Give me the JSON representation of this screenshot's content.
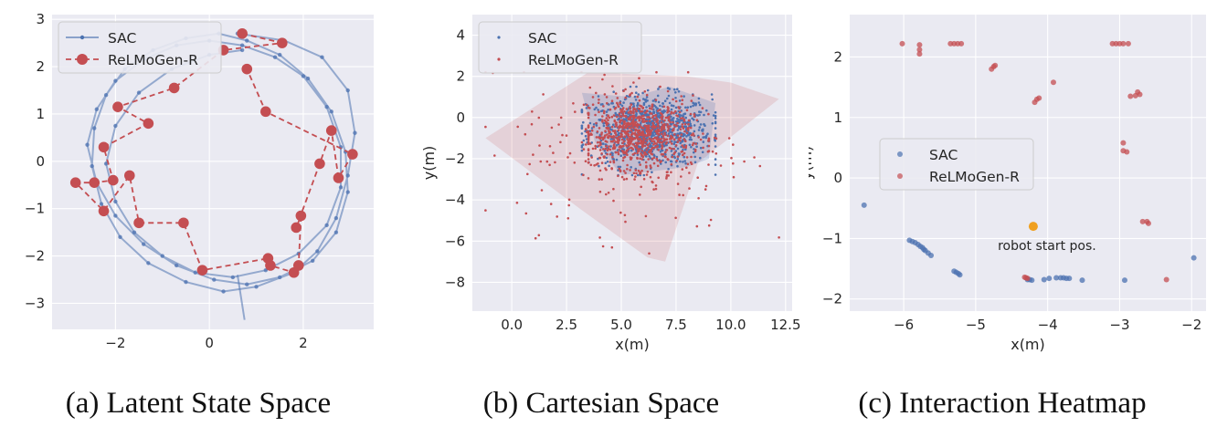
{
  "colors": {
    "sac": "#4c72b0",
    "relmogen": "#c44e52",
    "start": "#f0a020",
    "bg": "#eaeaf2"
  },
  "captions": [
    "(a) Latent State Space",
    "(b) Cartesian Space",
    "(c) Interaction Heatmap"
  ],
  "chart_data": [
    {
      "type": "line",
      "title": "",
      "xlabel": "",
      "ylabel": "",
      "xlim": [
        -3.35,
        3.5
      ],
      "ylim": [
        -3.55,
        3.1
      ],
      "xticks": [
        -2,
        0,
        2
      ],
      "yticks": [
        -3,
        -2,
        -1,
        0,
        1,
        2,
        3
      ],
      "tick_labels_x": [
        "−2",
        "0",
        "2"
      ],
      "tick_labels_y": [
        "−3",
        "−2",
        "−1",
        "0",
        "1",
        "2",
        "3"
      ],
      "legend": {
        "position": "top-left",
        "entries": [
          "SAC",
          "ReLMoGen-R"
        ]
      },
      "series": [
        {
          "name": "SAC",
          "style": "solid line with small markers",
          "x": [
            0.6,
            1.6,
            2.4,
            2.95,
            3.1,
            2.95,
            2.7,
            2.3,
            1.8,
            1.0,
            0.3,
            -0.5,
            -1.3,
            -1.9,
            -2.3,
            -2.5,
            -2.45,
            -2.2,
            -1.8,
            -1.2,
            -0.5,
            0.2,
            0.8,
            1.5,
            2.1,
            2.6,
            2.9,
            2.95,
            2.7,
            2.2,
            1.5,
            0.8,
            0.1,
            -0.7,
            -1.4,
            -2.0,
            -2.4,
            -2.6,
            -2.4,
            -2.0,
            -1.4,
            -0.7,
            0.0,
            0.7,
            1.4,
            2.0,
            2.5,
            2.8,
            2.8,
            2.5,
            1.9,
            1.2,
            0.5,
            -0.3,
            -1.0,
            -1.6,
            -2.0,
            -2.2,
            -2.0,
            -1.5,
            -0.8,
            0.0,
            0.7
          ],
          "y": [
            2.7,
            2.55,
            2.2,
            1.5,
            0.6,
            -0.3,
            -1.2,
            -1.9,
            -2.35,
            -2.65,
            -2.75,
            -2.55,
            -2.15,
            -1.6,
            -0.9,
            -0.1,
            0.7,
            1.4,
            1.95,
            2.35,
            2.6,
            2.7,
            2.55,
            2.25,
            1.75,
            1.05,
            0.2,
            -0.65,
            -1.5,
            -2.1,
            -2.45,
            -2.6,
            -2.5,
            -2.2,
            -1.75,
            -1.15,
            -0.45,
            0.35,
            1.1,
            1.7,
            2.15,
            2.45,
            2.55,
            2.45,
            2.2,
            1.8,
            1.15,
            0.3,
            -0.55,
            -1.35,
            -1.95,
            -2.3,
            -2.45,
            -2.35,
            -2.0,
            -1.5,
            -0.85,
            -0.05,
            0.75,
            1.45,
            1.95,
            2.25,
            2.35
          ]
        },
        {
          "name": "ReLMoGen-R",
          "style": "dashed line with large markers",
          "x": [
            0.7,
            1.55,
            0.3,
            -0.75,
            -1.95,
            -1.3,
            -2.25,
            -2.05,
            -2.45,
            -2.85,
            -2.25,
            -1.7,
            -1.5,
            -0.55,
            -0.15,
            1.25,
            1.3,
            1.8,
            1.9,
            1.95,
            1.85,
            2.35,
            2.6,
            2.75,
            3.05,
            1.2,
            0.8
          ],
          "y": [
            2.7,
            2.5,
            2.35,
            1.55,
            1.15,
            0.8,
            0.3,
            -0.4,
            -0.45,
            -0.45,
            -1.05,
            -0.3,
            -1.3,
            -1.3,
            -2.3,
            -2.05,
            -2.2,
            -2.35,
            -2.2,
            -1.15,
            -1.4,
            -0.05,
            0.65,
            -0.35,
            0.15,
            1.05,
            1.95
          ]
        }
      ]
    },
    {
      "type": "scatter",
      "title": "",
      "xlabel": "x(m)",
      "ylabel": "y(m)",
      "xlim": [
        -1.8,
        12.8
      ],
      "ylim": [
        -9.4,
        5.0
      ],
      "xticks": [
        0.0,
        2.5,
        5.0,
        7.5,
        10.0,
        12.5
      ],
      "yticks": [
        -8,
        -6,
        -4,
        -2,
        0,
        2,
        4
      ],
      "tick_labels_x": [
        "0.0",
        "2.5",
        "5.0",
        "7.5",
        "10.0",
        "12.5"
      ],
      "tick_labels_y": [
        "−8",
        "−6",
        "−4",
        "−2",
        "0",
        "2",
        "4"
      ],
      "legend": {
        "position": "top-left",
        "entries": [
          "SAC",
          "ReLMoGen-R"
        ]
      },
      "hulls": [
        {
          "name": "SAC",
          "x": [
            3.2,
            5.5,
            7.2,
            9.3,
            9.0,
            8.0,
            5.0,
            3.8
          ],
          "y": [
            1.2,
            1.0,
            1.5,
            0.7,
            -2.0,
            -2.4,
            -2.8,
            -1.2
          ]
        },
        {
          "name": "ReLMoGen-R",
          "x": [
            -1.2,
            3.5,
            8.0,
            10.0,
            12.2,
            8.5,
            7.0,
            6.2,
            3.2
          ],
          "y": [
            -1.0,
            2.2,
            2.0,
            1.7,
            0.9,
            -2.2,
            -7.0,
            -6.8,
            -4.5
          ]
        }
      ],
      "series": [
        {
          "name": "SAC",
          "cluster": {
            "cx": 6.3,
            "cy": -0.6,
            "sx": 1.4,
            "sy": 0.85,
            "n": 900,
            "xmin": 3.2,
            "xmax": 9.3,
            "ymin": -2.8,
            "ymax": 1.5
          }
        },
        {
          "name": "ReLMoGen-R",
          "cluster": {
            "cx": 5.7,
            "cy": -0.8,
            "sx": 1.25,
            "sy": 0.8,
            "n": 700,
            "xmin": 3.5,
            "xmax": 9.0,
            "ymin": -3.0,
            "ymax": 1.5
          },
          "scatter": {
            "cx": 5.5,
            "cy": -1.5,
            "sx": 2.6,
            "sy": 2.0,
            "n": 220,
            "xmin": -1.2,
            "xmax": 12.2,
            "ymin": -7.0,
            "ymax": 2.2
          }
        }
      ]
    },
    {
      "type": "scatter",
      "title": "",
      "xlabel": "x(m)",
      "ylabel": "y(m)",
      "xlim": [
        -6.75,
        -1.8
      ],
      "ylim": [
        -2.2,
        2.7
      ],
      "xticks": [
        -6,
        -5,
        -4,
        -3,
        -2
      ],
      "yticks": [
        -2,
        -1,
        0,
        1,
        2
      ],
      "tick_labels_x": [
        "−6",
        "−5",
        "−4",
        "−3",
        "−2"
      ],
      "tick_labels_y": [
        "−2",
        "−1",
        "0",
        "1",
        "2"
      ],
      "legend": {
        "position": "center-left",
        "entries": [
          "SAC",
          "ReLMoGen-R"
        ]
      },
      "annotation": {
        "text": "robot start pos.",
        "x": -4.2,
        "y": -0.8
      },
      "series": [
        {
          "name": "SAC",
          "x": [
            -6.55,
            -5.92,
            -5.88,
            -5.84,
            -5.8,
            -5.77,
            -5.74,
            -5.72,
            -5.7,
            -5.66,
            -5.62,
            -5.3,
            -5.27,
            -5.24,
            -5.22,
            -4.28,
            -4.25,
            -4.22,
            -4.05,
            -3.98,
            -3.88,
            -3.82,
            -3.78,
            -3.74,
            -3.7,
            -3.52,
            -2.93,
            -1.97
          ],
          "y": [
            -0.45,
            -1.03,
            -1.05,
            -1.07,
            -1.1,
            -1.13,
            -1.15,
            -1.18,
            -1.2,
            -1.24,
            -1.28,
            -1.54,
            -1.56,
            -1.58,
            -1.6,
            -1.68,
            -1.68,
            -1.69,
            -1.68,
            -1.66,
            -1.65,
            -1.65,
            -1.65,
            -1.66,
            -1.66,
            -1.69,
            -1.69,
            -1.32
          ]
        },
        {
          "name": "ReLMoGen-R",
          "x": [
            -6.02,
            -5.78,
            -5.78,
            -5.78,
            -5.35,
            -5.3,
            -5.25,
            -5.2,
            -4.78,
            -4.75,
            -4.73,
            -4.32,
            -4.3,
            -4.28,
            -4.18,
            -4.15,
            -4.12,
            -3.92,
            -3.1,
            -3.05,
            -3.0,
            -2.95,
            -2.88,
            -2.85,
            -2.78,
            -2.75,
            -2.72,
            -2.68,
            -2.95,
            -2.95,
            -2.9,
            -2.62,
            -2.6,
            -2.35
          ],
          "y": [
            2.22,
            2.2,
            2.12,
            2.05,
            2.22,
            2.22,
            2.22,
            2.22,
            1.8,
            1.84,
            1.86,
            -1.64,
            -1.65,
            -1.66,
            1.25,
            1.3,
            1.32,
            1.58,
            2.22,
            2.22,
            2.22,
            2.22,
            2.22,
            1.35,
            1.36,
            1.42,
            1.38,
            -0.72,
            0.58,
            0.45,
            0.43,
            -0.72,
            -0.75,
            -1.68
          ]
        }
      ],
      "start": {
        "x": -4.2,
        "y": -0.8
      }
    }
  ]
}
